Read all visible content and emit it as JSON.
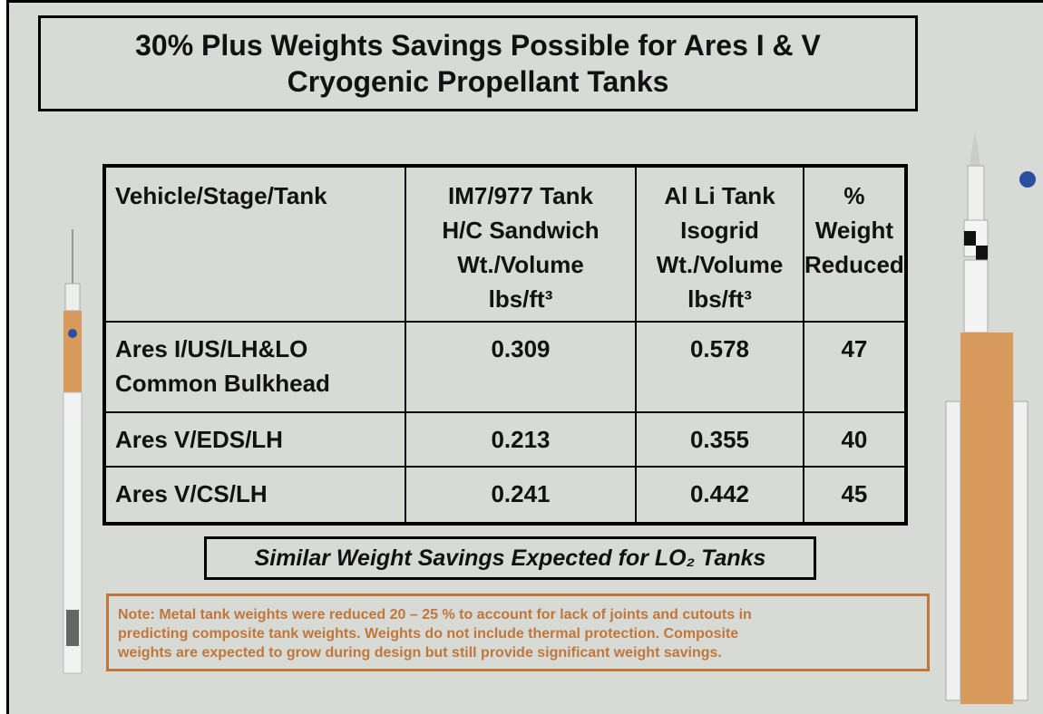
{
  "title": [
    "30% Plus Weights Savings Possible for Ares I & V",
    "Cryogenic Propellant Tanks"
  ],
  "table": {
    "header": [
      [
        "Vehicle/Stage/Tank"
      ],
      [
        "IM7/977 Tank",
        "H/C Sandwich",
        "Wt./Volume",
        "lbs/ft³"
      ],
      [
        "Al Li Tank",
        "Isogrid",
        "Wt./Volume",
        "lbs/ft³"
      ],
      [
        "%",
        "Weight",
        "Reduced"
      ]
    ],
    "rows": [
      [
        [
          "Ares I/US/LH&LO",
          "Common Bulkhead"
        ],
        0.309,
        0.578,
        47
      ],
      [
        [
          "Ares V/EDS/LH"
        ],
        0.213,
        0.355,
        40
      ],
      [
        [
          "Ares V/CS/LH"
        ],
        0.241,
        0.442,
        45
      ]
    ]
  },
  "callout": "Similar Weight Savings Expected for LO₂ Tanks",
  "note": [
    "Note: Metal tank weights were reduced 20 – 25 % to account for lack of joints and cutouts in",
    "predicting composite tank weights.  Weights do not include thermal protection.   Composite",
    "weights are expected to grow during design but still provide significant weight savings."
  ]
}
